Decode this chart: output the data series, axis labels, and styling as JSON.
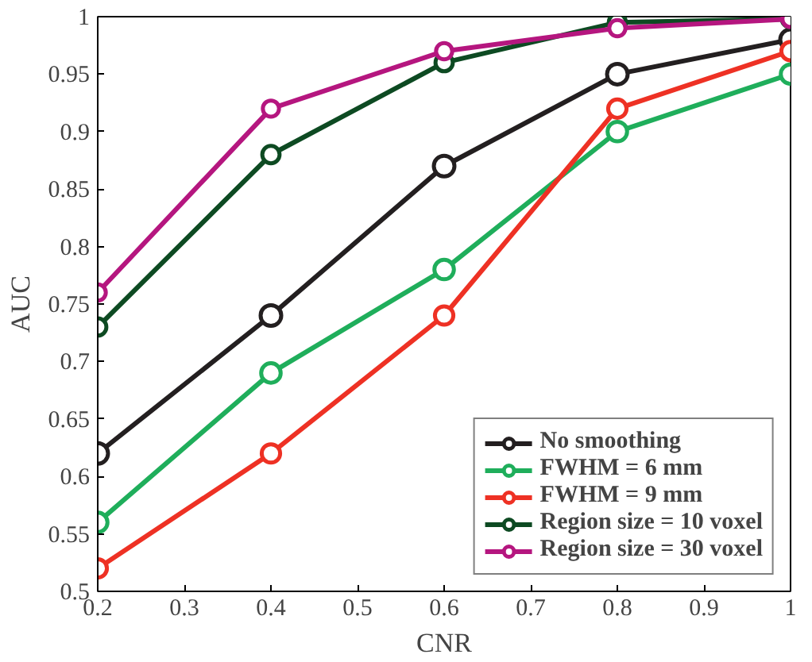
{
  "chart_data": {
    "type": "line",
    "xlabel": "CNR",
    "ylabel": "AUC",
    "x": [
      0.2,
      0.4,
      0.6,
      0.8,
      1
    ],
    "xlim": [
      0.2,
      1
    ],
    "ylim": [
      0.5,
      1
    ],
    "xticks": [
      0.2,
      0.3,
      0.4,
      0.5,
      0.6,
      0.7,
      0.8,
      0.9,
      1
    ],
    "yticks": [
      0.5,
      0.55,
      0.6,
      0.65,
      0.7,
      0.75,
      0.8,
      0.85,
      0.9,
      0.95,
      1
    ],
    "series": [
      {
        "name": "No smoothing",
        "color": "#231f20",
        "values": [
          0.62,
          0.74,
          0.87,
          0.95,
          0.98
        ]
      },
      {
        "name": "FWHM = 6 mm",
        "color": "#1fae5b",
        "values": [
          0.56,
          0.69,
          0.78,
          0.9,
          0.95
        ]
      },
      {
        "name": "FWHM = 9 mm",
        "color": "#ee3124",
        "values": [
          0.52,
          0.62,
          0.74,
          0.92,
          0.97
        ]
      },
      {
        "name": "Region size = 10 voxel",
        "color": "#0d4a22",
        "values": [
          0.73,
          0.88,
          0.96,
          0.995,
          0.998
        ]
      },
      {
        "name": "Region size = 30 voxel",
        "color": "#b5167f",
        "values": [
          0.76,
          0.92,
          0.97,
          0.99,
          0.998
        ]
      }
    ],
    "marker": "circle",
    "line_style": "solid",
    "grid": false,
    "legend": "bottom right"
  }
}
